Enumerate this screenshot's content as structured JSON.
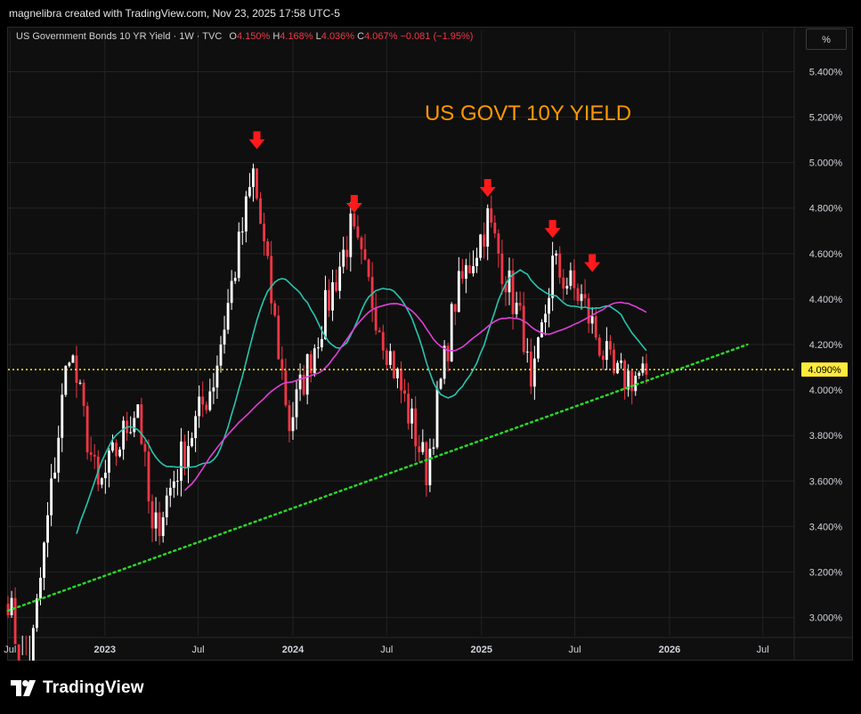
{
  "header": {
    "caption": "magnelibra created with TradingView.com, Nov 23, 2025 17:58 UTC-5"
  },
  "legend": {
    "symbol": "US Government Bonds 10 YR Yield · 1W · TVC",
    "o_label": "O",
    "o_value": "4.150%",
    "h_label": "H",
    "h_value": "4.168%",
    "l_label": "L",
    "l_value": "4.036%",
    "c_label": "C",
    "c_value": "4.067%",
    "change": "−0.081 (−1.95%)"
  },
  "scale_button": "%",
  "footer": {
    "brand": "TradingView",
    "logo_icon": "tradingview-logo-icon"
  },
  "colors": {
    "up_candle": "#ffffff",
    "down_candle": "#f23645",
    "ma_fast": "#26c6b0",
    "ma_slow": "#e040d8",
    "support_line": "#28d728",
    "price_line": "#ffeb3b",
    "title": "#ff9800",
    "arrows": "#ff1a1a"
  },
  "chart_data": {
    "type": "candlestick",
    "title": "US GOVT 10Y YIELD",
    "y_axis": {
      "ticks": [
        "5.400%",
        "5.200%",
        "5.000%",
        "4.800%",
        "4.600%",
        "4.400%",
        "4.200%",
        "4.000%",
        "3.800%",
        "3.600%",
        "3.400%",
        "3.200%",
        "3.000%"
      ],
      "range": [
        2.92,
        5.48
      ],
      "unit": "%"
    },
    "x_axis": {
      "ticks": [
        "Jul",
        "2023",
        "Jul",
        "2024",
        "Jul",
        "2025",
        "Jul",
        "2026",
        "Jul"
      ],
      "tick_dates": [
        "2022-07",
        "2023-01",
        "2023-07",
        "2024-01",
        "2024-07",
        "2025-01",
        "2025-07",
        "2026-01",
        "2026-07"
      ],
      "range": [
        "2022-06-27",
        "2026-08-31"
      ]
    },
    "current_price": {
      "value": 4.09,
      "label": "4.090%"
    },
    "approx_path": [
      {
        "date": "2022-06-27",
        "value": 3.1
      },
      {
        "date": "2022-08-01",
        "value": 2.65
      },
      {
        "date": "2022-10-24",
        "value": 4.2
      },
      {
        "date": "2022-12-19",
        "value": 3.55
      },
      {
        "date": "2023-03-06",
        "value": 3.95
      },
      {
        "date": "2023-04-03",
        "value": 3.35
      },
      {
        "date": "2023-05-29",
        "value": 3.7
      },
      {
        "date": "2023-07-31",
        "value": 4.05
      },
      {
        "date": "2023-10-16",
        "value": 4.95
      },
      {
        "date": "2023-12-25",
        "value": 3.85
      },
      {
        "date": "2024-04-22",
        "value": 4.7
      },
      {
        "date": "2024-05-27",
        "value": 4.45
      },
      {
        "date": "2024-09-16",
        "value": 3.65
      },
      {
        "date": "2024-11-11",
        "value": 4.4
      },
      {
        "date": "2025-01-13",
        "value": 4.75
      },
      {
        "date": "2025-03-24",
        "value": 4.25
      },
      {
        "date": "2025-04-07",
        "value": 3.95
      },
      {
        "date": "2025-05-19",
        "value": 4.55
      },
      {
        "date": "2025-07-14",
        "value": 4.4
      },
      {
        "date": "2025-09-15",
        "value": 4.05
      },
      {
        "date": "2025-11-17",
        "value": 4.07
      }
    ],
    "peak_arrows": [
      {
        "date": "2023-10-23",
        "value": 5.02
      },
      {
        "date": "2024-04-29",
        "value": 4.74
      },
      {
        "date": "2025-01-13",
        "value": 4.81
      },
      {
        "date": "2025-05-19",
        "value": 4.63
      },
      {
        "date": "2025-08-04",
        "value": 4.48
      }
    ],
    "support_line": [
      {
        "date": "2022-06-27",
        "value": 3.03
      },
      {
        "date": "2026-06-01",
        "value": 4.2
      }
    ],
    "price_line_value": 4.09,
    "legend": "none"
  }
}
